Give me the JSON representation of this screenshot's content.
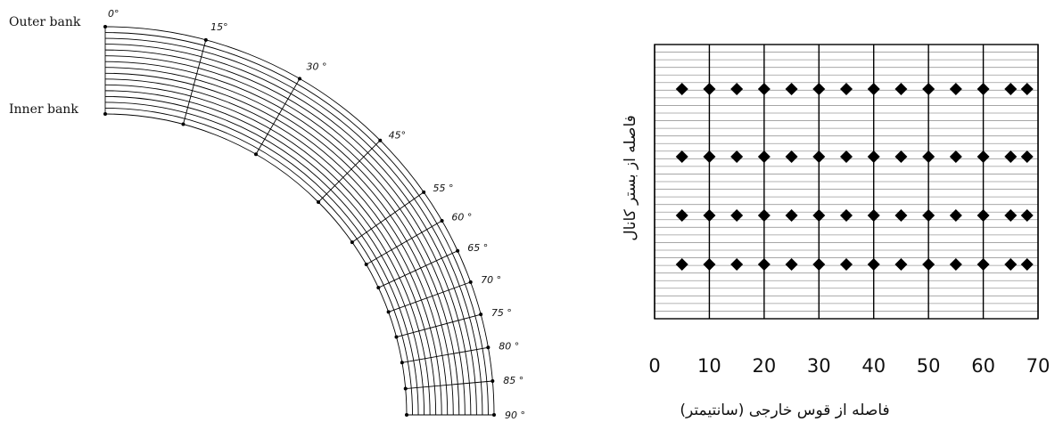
{
  "channel_diagram": {
    "outer_bank_label": "Outer bank",
    "inner_bank_label": "Inner bank",
    "angle_labels": [
      "0°",
      "15°",
      "30 °",
      "45°",
      "55 °",
      "60 °",
      "65 °",
      "70 °",
      "75 °",
      "80 °",
      "85 °",
      "90 °"
    ],
    "angles": [
      0,
      15,
      30,
      45,
      55,
      60,
      65,
      70,
      75,
      80,
      85,
      90
    ],
    "arc_count": 16
  },
  "grid_plot": {
    "x_tick_labels": [
      "0",
      "10",
      "20",
      "30",
      "40",
      "50",
      "60",
      "70"
    ],
    "x_axis_title": "فاصله از قوس خارجی (سانتیمتر)",
    "y_axis_title": "فاصله از بستر کانال",
    "x_range": [
      0,
      70
    ],
    "major_verticals": [
      0,
      10,
      20,
      30,
      40,
      50,
      60,
      70
    ],
    "point_x": [
      5,
      10,
      15,
      20,
      25,
      30,
      35,
      40,
      45,
      50,
      55,
      60,
      65,
      68
    ],
    "point_rows": 4,
    "horizontal_line_count": 36,
    "marker_color": "#000000"
  }
}
